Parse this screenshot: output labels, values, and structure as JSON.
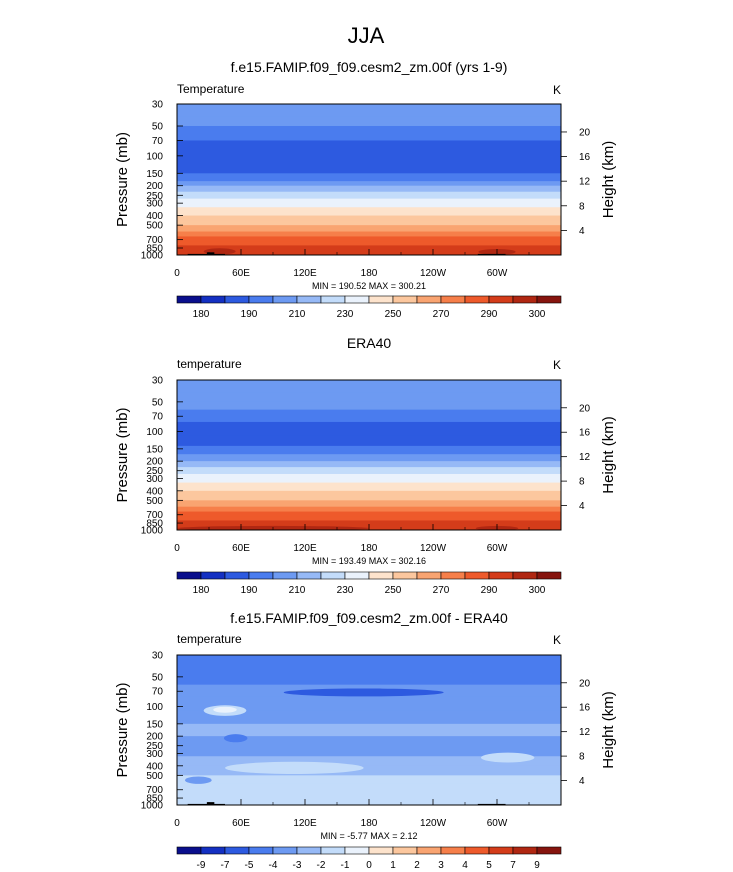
{
  "figure_title": "JJA",
  "chart_data": [
    {
      "type": "heatmap",
      "title": "f.e15.FAMIP.f09_f09.cesm2_zm.00f (yrs 1-9)",
      "left_label": "Temperature",
      "right_label": "K",
      "xlabel": "",
      "ylabel": "Pressure (mb)",
      "y2label": "Height (km)",
      "x_ticks": [
        "0",
        "60E",
        "120E",
        "180",
        "120W",
        "60W"
      ],
      "y_ticks": [
        "30",
        "50",
        "70",
        "100",
        "150",
        "200",
        "250",
        "300",
        "400",
        "500",
        "700",
        "850",
        "1000"
      ],
      "y2_ticks": [
        "20",
        "16",
        "12",
        "8",
        "4"
      ],
      "stats": "MIN = 190.52  MAX = 300.21",
      "colorbar_labels": [
        "180",
        "190",
        "210",
        "230",
        "250",
        "270",
        "290",
        "300"
      ],
      "colorbar_colors": [
        "#0a0f8c",
        "#1430c2",
        "#2d5ae0",
        "#4a7cee",
        "#6d9af2",
        "#96b9f6",
        "#c3dcfa",
        "#eaf2fc",
        "#fde3cc",
        "#fcc79e",
        "#f9a471",
        "#f67f4a",
        "#ee5a2b",
        "#d43c1a",
        "#b02712",
        "#86140e"
      ],
      "vertical_profile": [
        {
          "pressure": 30,
          "level": 4
        },
        {
          "pressure": 40,
          "level": 4
        },
        {
          "pressure": 50,
          "level": 3
        },
        {
          "pressure": 60,
          "level": 3
        },
        {
          "pressure": 70,
          "level": 2
        },
        {
          "pressure": 100,
          "level": 2
        },
        {
          "pressure": 130,
          "level": 2
        },
        {
          "pressure": 150,
          "level": 3
        },
        {
          "pressure": 180,
          "level": 4
        },
        {
          "pressure": 200,
          "level": 5
        },
        {
          "pressure": 230,
          "level": 6
        },
        {
          "pressure": 270,
          "level": 7
        },
        {
          "pressure": 300,
          "level": 7
        },
        {
          "pressure": 330,
          "level": 8
        },
        {
          "pressure": 360,
          "level": 8
        },
        {
          "pressure": 400,
          "level": 9
        },
        {
          "pressure": 450,
          "level": 9
        },
        {
          "pressure": 500,
          "level": 10
        },
        {
          "pressure": 580,
          "level": 11
        },
        {
          "pressure": 650,
          "level": 12
        },
        {
          "pressure": 730,
          "level": 12
        },
        {
          "pressure": 800,
          "level": 13
        },
        {
          "pressure": 900,
          "level": 13
        },
        {
          "pressure": 1000,
          "level": 13
        }
      ],
      "features": [
        {
          "type": "ellipse",
          "lon": 40,
          "p": 920,
          "w_lon": 30,
          "h_p": 90,
          "level": 14
        },
        {
          "type": "ellipse",
          "lon": 300,
          "p": 930,
          "w_lon": 35,
          "h_p": 80,
          "level": 14
        }
      ],
      "terrain": [
        {
          "lon_start": 10,
          "lon_end": 45,
          "p_top": 975
        },
        {
          "lon_start": 28,
          "lon_end": 35,
          "p_top": 940
        },
        {
          "lon_start": 282,
          "lon_end": 308,
          "p_top": 975
        }
      ]
    },
    {
      "type": "heatmap",
      "title": "ERA40",
      "left_label": "temperature",
      "right_label": "K",
      "xlabel": "",
      "ylabel": "Pressure (mb)",
      "y2label": "Height (km)",
      "x_ticks": [
        "0",
        "60E",
        "120E",
        "180",
        "120W",
        "60W"
      ],
      "y_ticks": [
        "30",
        "50",
        "70",
        "100",
        "150",
        "200",
        "250",
        "300",
        "400",
        "500",
        "700",
        "850",
        "1000"
      ],
      "y2_ticks": [
        "20",
        "16",
        "12",
        "8",
        "4"
      ],
      "stats": "MIN = 193.49  MAX = 302.16",
      "colorbar_labels": [
        "180",
        "190",
        "210",
        "230",
        "250",
        "270",
        "290",
        "300"
      ],
      "colorbar_colors": [
        "#0a0f8c",
        "#1430c2",
        "#2d5ae0",
        "#4a7cee",
        "#6d9af2",
        "#96b9f6",
        "#c3dcfa",
        "#eaf2fc",
        "#fde3cc",
        "#fcc79e",
        "#f9a471",
        "#f67f4a",
        "#ee5a2b",
        "#d43c1a",
        "#b02712",
        "#86140e"
      ],
      "vertical_profile": [
        {
          "pressure": 30,
          "level": 4
        },
        {
          "pressure": 40,
          "level": 4
        },
        {
          "pressure": 50,
          "level": 4
        },
        {
          "pressure": 60,
          "level": 3
        },
        {
          "pressure": 70,
          "level": 3
        },
        {
          "pressure": 80,
          "level": 2
        },
        {
          "pressure": 110,
          "level": 2
        },
        {
          "pressure": 140,
          "level": 3
        },
        {
          "pressure": 170,
          "level": 4
        },
        {
          "pressure": 200,
          "level": 5
        },
        {
          "pressure": 230,
          "level": 6
        },
        {
          "pressure": 270,
          "level": 7
        },
        {
          "pressure": 300,
          "level": 7
        },
        {
          "pressure": 330,
          "level": 8
        },
        {
          "pressure": 360,
          "level": 8
        },
        {
          "pressure": 400,
          "level": 9
        },
        {
          "pressure": 450,
          "level": 9
        },
        {
          "pressure": 500,
          "level": 10
        },
        {
          "pressure": 580,
          "level": 11
        },
        {
          "pressure": 650,
          "level": 12
        },
        {
          "pressure": 730,
          "level": 12
        },
        {
          "pressure": 800,
          "level": 13
        },
        {
          "pressure": 900,
          "level": 13
        },
        {
          "pressure": 1000,
          "level": 13
        }
      ],
      "features": [
        {
          "type": "ellipse",
          "lon": 90,
          "p": 960,
          "w_lon": 180,
          "h_p": 60,
          "level": 14
        },
        {
          "type": "ellipse",
          "lon": 300,
          "p": 960,
          "w_lon": 40,
          "h_p": 60,
          "level": 14
        }
      ],
      "terrain": []
    },
    {
      "type": "heatmap",
      "title": "f.e15.FAMIP.f09_f09.cesm2_zm.00f - ERA40",
      "left_label": "temperature",
      "right_label": "K",
      "xlabel": "",
      "ylabel": "Pressure (mb)",
      "y2label": "Height (km)",
      "x_ticks": [
        "0",
        "60E",
        "120E",
        "180",
        "120W",
        "60W"
      ],
      "y_ticks": [
        "30",
        "50",
        "70",
        "100",
        "150",
        "200",
        "250",
        "300",
        "400",
        "500",
        "700",
        "850",
        "1000"
      ],
      "y2_ticks": [
        "20",
        "16",
        "12",
        "8",
        "4"
      ],
      "stats": "MIN = -5.77  MAX =  2.12",
      "colorbar_labels": [
        "-9",
        "-7",
        "-5",
        "-4",
        "-3",
        "-2",
        "-1",
        "0",
        "1",
        "2",
        "3",
        "4",
        "5",
        "7",
        "9"
      ],
      "colorbar_colors": [
        "#0a0f8c",
        "#1430c2",
        "#2d5ae0",
        "#4a7cee",
        "#6d9af2",
        "#96b9f6",
        "#c3dcfa",
        "#eaf2fc",
        "#fde3cc",
        "#fcc79e",
        "#f9a471",
        "#f67f4a",
        "#ee5a2b",
        "#d43c1a",
        "#b02712",
        "#86140e"
      ],
      "vertical_profile": [
        {
          "pressure": 30,
          "level": 3
        },
        {
          "pressure": 45,
          "level": 3
        },
        {
          "pressure": 60,
          "level": 4
        },
        {
          "pressure": 80,
          "level": 4
        },
        {
          "pressure": 110,
          "level": 4
        },
        {
          "pressure": 150,
          "level": 5
        },
        {
          "pressure": 200,
          "level": 4
        },
        {
          "pressure": 260,
          "level": 4
        },
        {
          "pressure": 320,
          "level": 5
        },
        {
          "pressure": 400,
          "level": 5
        },
        {
          "pressure": 500,
          "level": 6
        },
        {
          "pressure": 600,
          "level": 6
        },
        {
          "pressure": 700,
          "level": 6
        },
        {
          "pressure": 850,
          "level": 6
        },
        {
          "pressure": 1000,
          "level": 6
        }
      ],
      "features": [
        {
          "type": "ellipse",
          "lon": 175,
          "p": 72,
          "w_lon": 150,
          "h_p": 10,
          "level": 2
        },
        {
          "type": "ellipse",
          "lon": 45,
          "p": 110,
          "w_lon": 40,
          "h_p": 22,
          "level": 6
        },
        {
          "type": "ellipse",
          "lon": 45,
          "p": 108,
          "w_lon": 22,
          "h_p": 10,
          "level": 7
        },
        {
          "type": "ellipse",
          "lon": 55,
          "p": 210,
          "w_lon": 22,
          "h_p": 30,
          "level": 3
        },
        {
          "type": "ellipse",
          "lon": 110,
          "p": 420,
          "w_lon": 130,
          "h_p": 100,
          "level": 6
        },
        {
          "type": "ellipse",
          "lon": 20,
          "p": 560,
          "w_lon": 25,
          "h_p": 70,
          "level": 4
        },
        {
          "type": "ellipse",
          "lon": 310,
          "p": 330,
          "w_lon": 50,
          "h_p": 60,
          "level": 6
        }
      ],
      "terrain": [
        {
          "lon_start": 10,
          "lon_end": 45,
          "p_top": 975
        },
        {
          "lon_start": 28,
          "lon_end": 35,
          "p_top": 935
        },
        {
          "lon_start": 282,
          "lon_end": 308,
          "p_top": 975
        }
      ]
    }
  ]
}
